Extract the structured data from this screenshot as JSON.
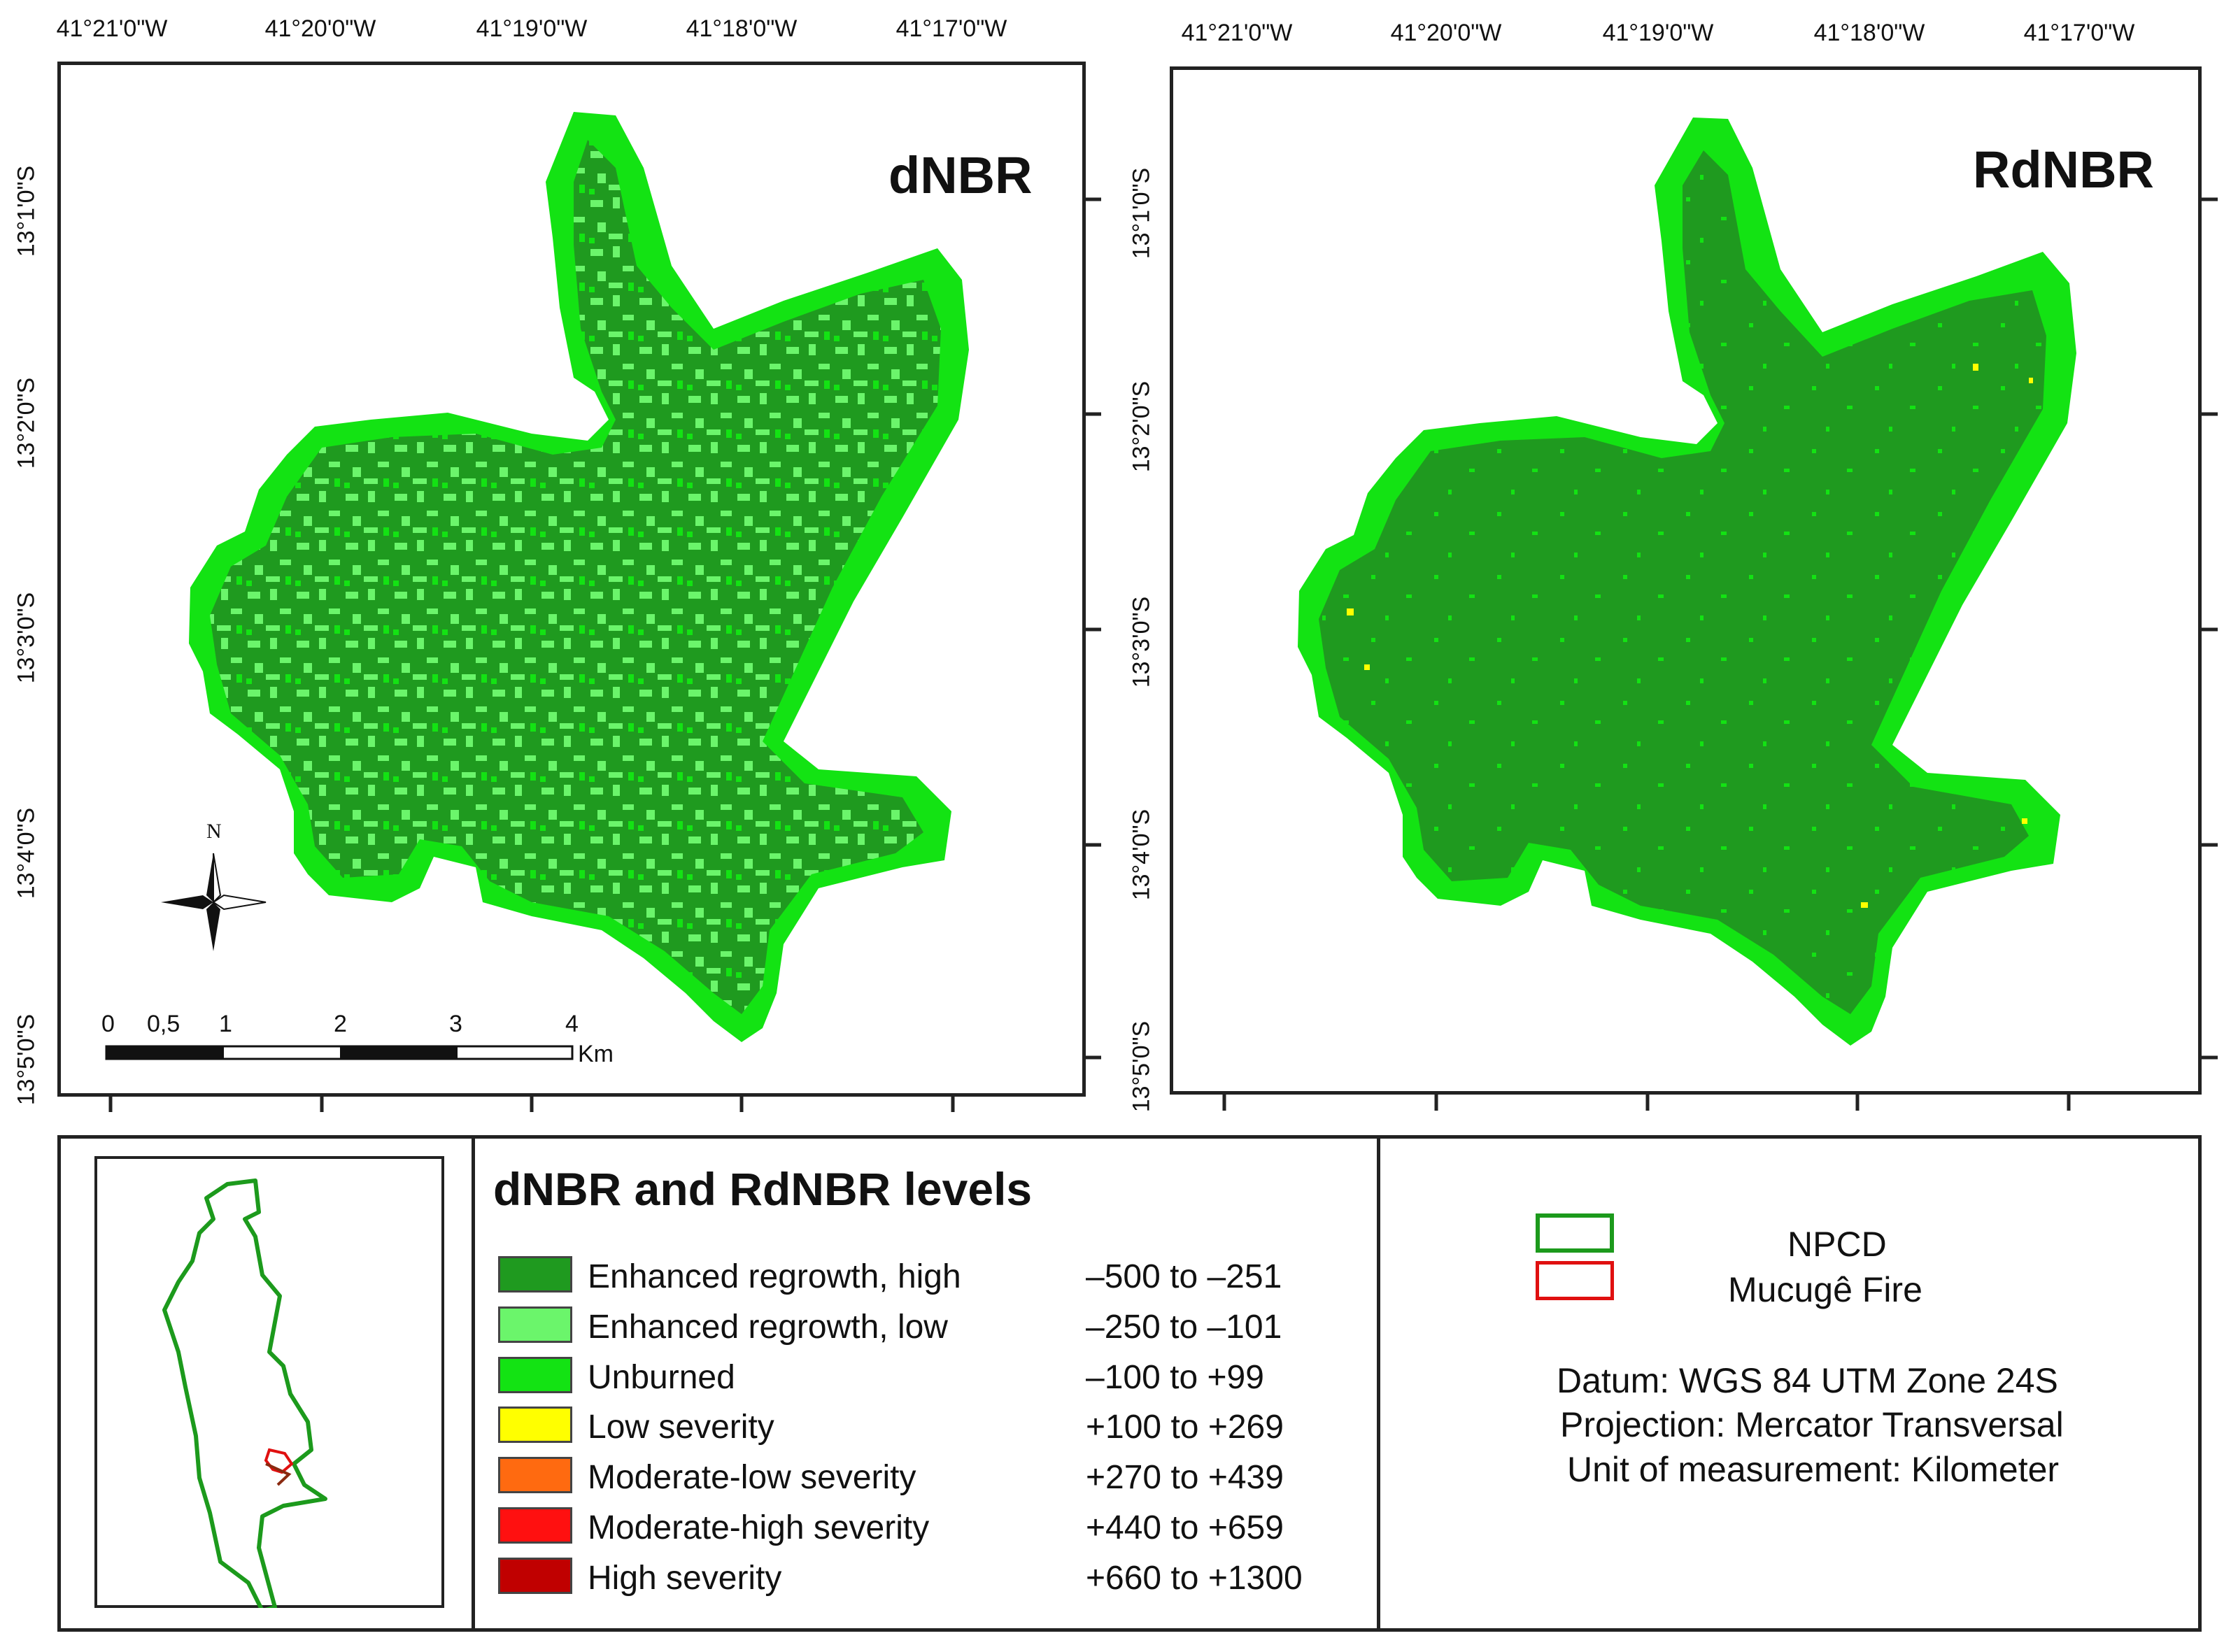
{
  "map_left": {
    "title": "dNBR",
    "longitudes": [
      "41°21'0\"W",
      "41°20'0\"W",
      "41°19'0\"W",
      "41°18'0\"W",
      "41°17'0\"W"
    ],
    "latitudes": [
      "13°1'0\"S",
      "13°2'0\"S",
      "13°3'0\"S",
      "13°4'0\"S",
      "13°5'0\"S"
    ],
    "north_arrow": "N",
    "scale_bar": {
      "labels": [
        "0",
        "0,5",
        "1",
        "2",
        "3",
        "4"
      ],
      "unit": "Km"
    }
  },
  "map_right": {
    "title": "RdNBR",
    "longitudes": [
      "41°21'0\"W",
      "41°20'0\"W",
      "41°19'0\"W",
      "41°18'0\"W",
      "41°17'0\"W"
    ],
    "latitudes": [
      "13°1'0\"S",
      "13°2'0\"S",
      "13°3'0\"S",
      "13°4'0\"S",
      "13°5'0\"S"
    ]
  },
  "legend": {
    "title": "dNBR and RdNBR levels",
    "items": [
      {
        "label": "Enhanced regrowth, high",
        "range": "–500 to –251",
        "color": "#1f9a1f"
      },
      {
        "label": "Enhanced regrowth, low",
        "range": "–250 to –101",
        "color": "#6bf56b"
      },
      {
        "label": "Unburned",
        "range": "–100 to +99",
        "color": "#13e313"
      },
      {
        "label": "Low severity",
        "range": "+100 to +269",
        "color": "#ffff00"
      },
      {
        "label": "Moderate-low severity",
        "range": "+270 to +439",
        "color": "#ff6a10"
      },
      {
        "label": "Moderate-high severity",
        "range": "+440 to +659",
        "color": "#ff1010"
      },
      {
        "label": "High severity",
        "range": "+660 to +1300",
        "color": "#c00000"
      }
    ]
  },
  "boundary_legend": {
    "items": [
      {
        "label": "NPCD",
        "color": "#1c9a1c"
      },
      {
        "label": "Mucugê Fire",
        "color": "#e01010"
      }
    ]
  },
  "map_info": {
    "datum": "Datum: WGS 84 UTM Zone 24S",
    "projection": "Projection: Mercator Transversal",
    "unit": "Unit of measurement: Kilometer"
  },
  "colors": {
    "dark_green": "#1f9a1f",
    "light_green": "#6bf56b",
    "bright_green": "#13e313",
    "frame": "#222222"
  }
}
